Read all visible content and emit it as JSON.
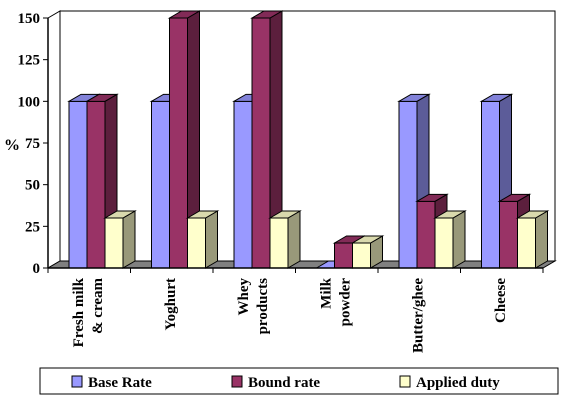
{
  "chart_data": {
    "type": "bar",
    "title": "",
    "xlabel": "",
    "ylabel": "%",
    "ylim": [
      0,
      150
    ],
    "yticks": [
      0,
      25,
      50,
      75,
      100,
      125,
      150
    ],
    "grid": false,
    "three_d": true,
    "legend_position": "bottom",
    "categories": [
      [
        "Fresh milk",
        "& cream"
      ],
      [
        "Yoghurt"
      ],
      [
        "Whey",
        "products"
      ],
      [
        "Milk",
        "powder"
      ],
      [
        "Butter/ghee"
      ],
      [
        "Cheese"
      ]
    ],
    "series": [
      {
        "name": "Base Rate",
        "values": [
          100,
          100,
          100,
          0,
          100,
          100
        ],
        "color": "#9999ff"
      },
      {
        "name": "Bound rate",
        "values": [
          100,
          150,
          150,
          15,
          40,
          40
        ],
        "color": "#993366"
      },
      {
        "name": "Applied duty",
        "values": [
          30,
          30,
          30,
          15,
          30,
          30
        ],
        "color": "#ffffcc"
      }
    ]
  }
}
